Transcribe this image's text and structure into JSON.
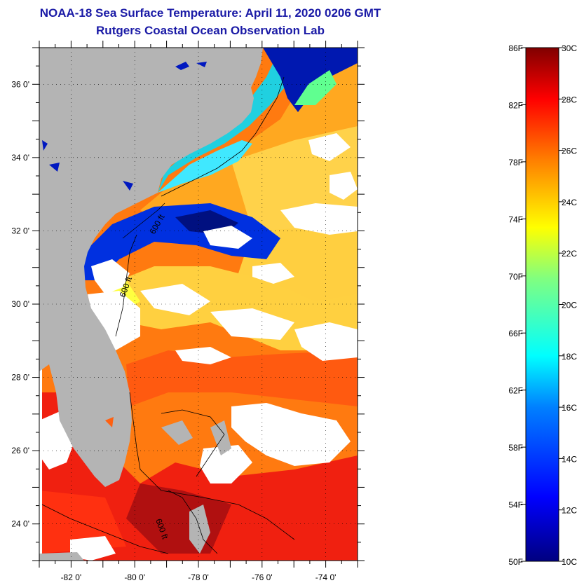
{
  "title": "NOAA-18 Sea Surface Temperature:  April 11, 2020 0206 GMT",
  "subtitle": "Rutgers Coastal Ocean Observation Lab",
  "map": {
    "lat_labels": [
      "36 0'",
      "34 0'",
      "32 0'",
      "30 0'",
      "28 0'",
      "26 0'",
      "24 0'"
    ],
    "lat_values": [
      36,
      34,
      32,
      30,
      28,
      26,
      24
    ],
    "lon_labels": [
      "-82 0'",
      "-80 0'",
      "-78 0'",
      "-76 0'",
      "-74 0'"
    ],
    "lon_values": [
      -82,
      -80,
      -78,
      -76,
      -74
    ],
    "lat_range": [
      23.0,
      37.0
    ],
    "lon_range": [
      -83.0,
      -73.0
    ],
    "contour_labels": [
      "600 ft",
      "600 ft",
      "600 ft"
    ]
  },
  "colorbar": {
    "fahrenheit_labels": [
      "86F",
      "82F",
      "78F",
      "74F",
      "70F",
      "66F",
      "62F",
      "58F",
      "54F",
      "50F"
    ],
    "celsius_labels": [
      "30C",
      "28C",
      "26C",
      "24C",
      "22C",
      "20C",
      "18C",
      "16C",
      "14C",
      "12C",
      "10C"
    ],
    "range_c": [
      10,
      30
    ],
    "colors": [
      "#000080",
      "#0000ff",
      "#0080ff",
      "#00ffff",
      "#80ff80",
      "#ffff00",
      "#ff8000",
      "#ff0000",
      "#800000"
    ]
  },
  "colors": {
    "land": "#b4b4b4",
    "cloud": "#ffffff",
    "title": "#1a1aa6"
  }
}
